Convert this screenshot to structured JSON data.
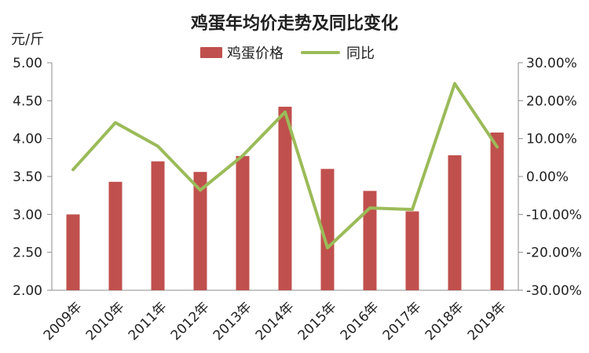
{
  "chart_data": {
    "type": "bar",
    "title": "鸡蛋年均价走势及同比变化",
    "ylabel": "元/斤",
    "categories": [
      "2009年",
      "2010年",
      "2011年",
      "2012年",
      "2013年",
      "2014年",
      "2015年",
      "2016年",
      "2017年",
      "2018年",
      "2019年"
    ],
    "series": [
      {
        "name": "鸡蛋价格",
        "type": "bar",
        "axis": "left",
        "values": [
          3.0,
          3.43,
          3.7,
          3.56,
          3.77,
          4.42,
          3.6,
          3.31,
          3.04,
          3.78,
          4.08
        ]
      },
      {
        "name": "同比",
        "type": "line",
        "axis": "right",
        "values": [
          1.8,
          14.2,
          8.0,
          -3.6,
          5.5,
          17.0,
          -18.8,
          -8.3,
          -8.7,
          24.5,
          7.8
        ]
      }
    ],
    "yLeft": {
      "min": 2.0,
      "max": 5.0,
      "ticks": [
        "2.00",
        "2.50",
        "3.00",
        "3.50",
        "4.00",
        "4.50",
        "5.00"
      ]
    },
    "yRight": {
      "min": -30,
      "max": 30,
      "ticks": [
        "-30.00%",
        "-20.00%",
        "-10.00%",
        "0.00%",
        "10.00%",
        "20.00%",
        "30.00%"
      ]
    },
    "legend": {
      "position": "top-center",
      "items": [
        "鸡蛋价格",
        "同比"
      ]
    },
    "grid": false,
    "colors": {
      "bar": "#c0504d",
      "line": "#9bbb59",
      "axis": "#8c8c8c",
      "text": "#222222"
    }
  }
}
